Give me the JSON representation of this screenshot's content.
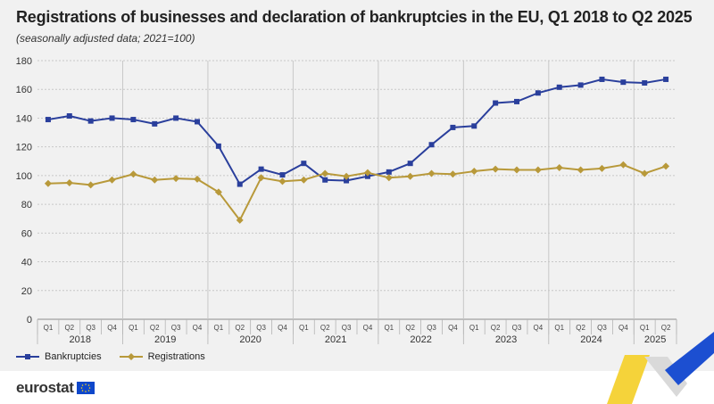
{
  "title": "Registrations of businesses and declaration of bankruptcies in the EU, Q1 2018 to Q2 2025",
  "subtitle": "(seasonally adjusted data; 2021=100)",
  "brand": "eurostat",
  "colors": {
    "bankruptcies": "#2a3f9c",
    "registrations": "#b8993a",
    "panel": "#f1f1f1",
    "grid": "#c8c8c8"
  },
  "chart_data": {
    "type": "line",
    "title": "Registrations of businesses and declaration of bankruptcies in the EU, Q1 2018 to Q2 2025",
    "subtitle": "(seasonally adjusted data; 2021=100)",
    "xlabel": "",
    "ylabel": "",
    "ylim": [
      0,
      180
    ],
    "yticks": [
      0,
      20,
      40,
      60,
      80,
      100,
      120,
      140,
      160,
      180
    ],
    "grid": true,
    "legend_position": "bottom-left",
    "quarter_labels": [
      "Q1",
      "Q2",
      "Q3",
      "Q4",
      "Q1",
      "Q2",
      "Q3",
      "Q4",
      "Q1",
      "Q2",
      "Q3",
      "Q4",
      "Q1",
      "Q2",
      "Q3",
      "Q4",
      "Q1",
      "Q2",
      "Q3",
      "Q4",
      "Q1",
      "Q2",
      "Q3",
      "Q4",
      "Q1",
      "Q2",
      "Q3",
      "Q4",
      "Q1",
      "Q2"
    ],
    "year_labels": [
      "2018",
      "2019",
      "2020",
      "2021",
      "2022",
      "2023",
      "2024",
      "2025"
    ],
    "series": [
      {
        "name": "Bankruptcies",
        "marker": "square",
        "values": [
          139,
          141.5,
          138,
          140,
          139,
          136,
          140,
          137.5,
          120.5,
          94,
          104.5,
          100.5,
          108.5,
          97,
          96.5,
          99.5,
          102.5,
          108.5,
          121.5,
          133.5,
          134.5,
          150.5,
          151.5,
          157.5,
          161.5,
          163,
          167,
          165,
          164.5,
          167
        ]
      },
      {
        "name": "Registrations",
        "marker": "diamond",
        "values": [
          94.5,
          95,
          93.5,
          97,
          101,
          97,
          98,
          97.5,
          88.5,
          69,
          98.5,
          96,
          97,
          101.5,
          99.5,
          102,
          98.5,
          99.5,
          101.5,
          101,
          103,
          104.5,
          104,
          104,
          105.5,
          104,
          105,
          107.5,
          101.5,
          106.5
        ]
      }
    ]
  }
}
